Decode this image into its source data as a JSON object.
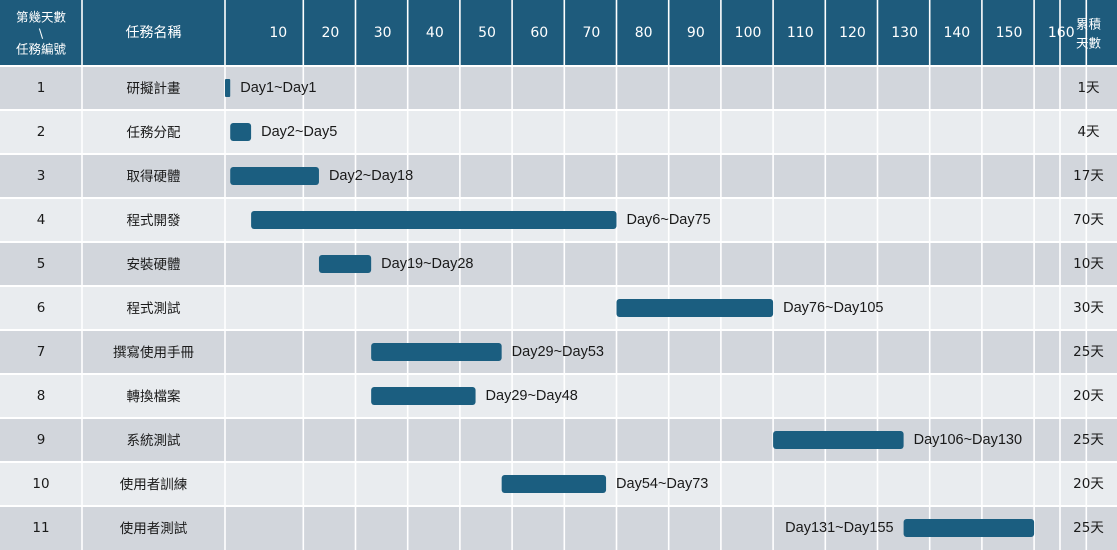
{
  "chart_data": {
    "type": "gantt",
    "header": {
      "corner_top": "第幾天數",
      "corner_mid": "\\",
      "corner_bottom": "任務編號",
      "task_name": "任務名稱",
      "total_top": "累積",
      "total_bottom": "天數"
    },
    "ticks": [
      "10",
      "20",
      "30",
      "40",
      "50",
      "60",
      "70",
      "80",
      "90",
      "100",
      "110",
      "120",
      "130",
      "140",
      "150",
      "160"
    ],
    "xlim": [
      0,
      165
    ],
    "tasks": [
      {
        "id": "1",
        "name": "研擬計畫",
        "start": 1,
        "end": 1,
        "label": "Day1~Day1",
        "total": "1天"
      },
      {
        "id": "2",
        "name": "任務分配",
        "start": 2,
        "end": 5,
        "label": "Day2~Day5",
        "total": "4天"
      },
      {
        "id": "3",
        "name": "取得硬體",
        "start": 2,
        "end": 18,
        "label": "Day2~Day18",
        "total": "17天"
      },
      {
        "id": "4",
        "name": "程式開發",
        "start": 6,
        "end": 75,
        "label": "Day6~Day75",
        "total": "70天"
      },
      {
        "id": "5",
        "name": "安裝硬體",
        "start": 19,
        "end": 28,
        "label": "Day19~Day28",
        "total": "10天"
      },
      {
        "id": "6",
        "name": "程式測試",
        "start": 76,
        "end": 105,
        "label": "Day76~Day105",
        "total": "30天"
      },
      {
        "id": "7",
        "name": "撰寫使用手冊",
        "start": 29,
        "end": 53,
        "label": "Day29~Day53",
        "total": "25天"
      },
      {
        "id": "8",
        "name": "轉換檔案",
        "start": 29,
        "end": 48,
        "label": "Day29~Day48",
        "total": "20天"
      },
      {
        "id": "9",
        "name": "系統測試",
        "start": 106,
        "end": 130,
        "label": "Day106~Day130",
        "total": "25天"
      },
      {
        "id": "10",
        "name": "使用者訓練",
        "start": 54,
        "end": 73,
        "label": "Day54~Day73",
        "total": "20天"
      },
      {
        "id": "11",
        "name": "使用者測試",
        "start": 131,
        "end": 155,
        "label": "Day131~Day155",
        "total": "25天",
        "label_position": "left"
      }
    ],
    "colors": {
      "header_bg": "#1e5b7c",
      "bar": "#1b5e80",
      "row_dark": "#d2d6dc",
      "row_light": "#e9ecef",
      "grid_line": "#ffffff"
    }
  }
}
